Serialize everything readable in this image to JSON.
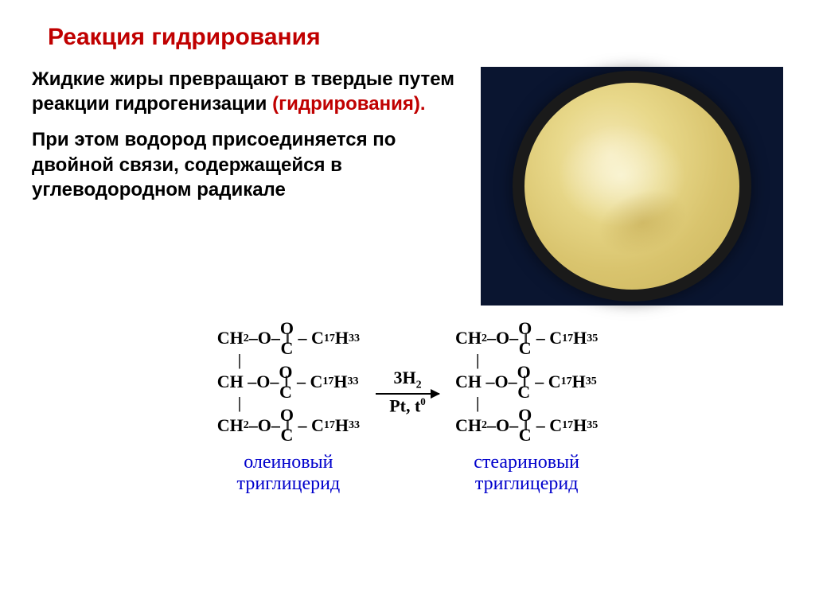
{
  "title": "Реакция гидрирования",
  "para1_lead": "Жидкие жиры превращают в твердые путем реакции гидрогенизации ",
  "para1_highlight": "(гидрирования).",
  "para2": "При этом водород присоединяется по двойной связи, содержащейся в углеводородном радикале",
  "colors": {
    "title": "#c00000",
    "highlight": "#c00000",
    "label": "#0000cc",
    "bg_image": "#0a1530",
    "butter_light": "#f5e9b8",
    "butter_dark": "#c9b35a"
  },
  "reaction": {
    "left": {
      "ch2": "CH",
      "ch": "CH",
      "o_link": "O",
      "carbonyl_o": "O",
      "carbonyl_c": "C",
      "tail": "C",
      "tail_sub1": "17",
      "tail_h": "H",
      "tail_sub2": "33",
      "label_l1": "олеиновый",
      "label_l2": "триглицерид"
    },
    "arrow": {
      "top_coef": "3H",
      "top_sub": "2",
      "bot_cat": "Pt,",
      "bot_t": " t",
      "bot_sup": "0"
    },
    "right": {
      "tail_sub2": "35",
      "label_l1": "стеариновый",
      "label_l2": "триглицерид"
    }
  }
}
